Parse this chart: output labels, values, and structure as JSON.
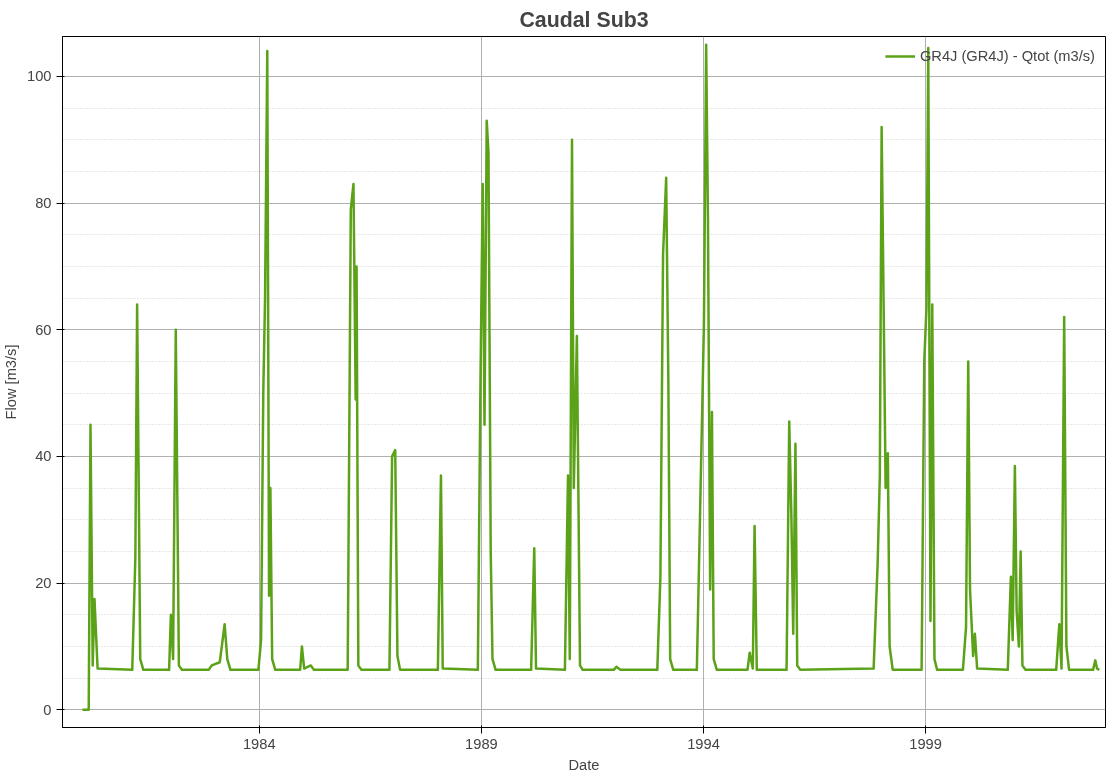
{
  "chart_data": {
    "type": "line",
    "title": "Caudal Sub3",
    "xlabel": "Date",
    "ylabel": "Flow [m3/s]",
    "xlim": [
      1979.57,
      2003.05
    ],
    "ylim": [
      -2.8,
      106.3
    ],
    "xticks": [
      1984,
      1989,
      1994,
      1999
    ],
    "yticks": [
      0,
      20,
      40,
      60,
      80,
      100
    ],
    "grid": true,
    "legend": "top right",
    "marker": "none",
    "line_style": "solid",
    "series": [
      {
        "name": "GR4J (GR4J) - Qtot (m3/s)",
        "color": "#5ba219",
        "x": [
          1980.02,
          1980.16,
          1980.2,
          1980.25,
          1980.29,
          1980.36,
          1981.14,
          1981.21,
          1981.25,
          1981.32,
          1981.39,
          1981.97,
          1982.01,
          1982.06,
          1982.12,
          1982.19,
          1982.26,
          1982.86,
          1982.93,
          1983.11,
          1983.22,
          1983.28,
          1983.35,
          1983.98,
          1984.04,
          1984.09,
          1984.13,
          1984.18,
          1984.22,
          1984.25,
          1984.29,
          1984.36,
          1984.92,
          1984.96,
          1985.01,
          1985.16,
          1985.23,
          1985.99,
          1986.06,
          1986.12,
          1986.17,
          1986.19,
          1986.23,
          1986.3,
          1986.93,
          1986.99,
          1987.06,
          1987.11,
          1987.17,
          1988.02,
          1988.09,
          1988.13,
          1988.92,
          1988.98,
          1989.03,
          1989.07,
          1989.12,
          1989.16,
          1989.21,
          1989.25,
          1989.32,
          1990.12,
          1990.19,
          1990.23,
          1990.88,
          1990.95,
          1990.99,
          1991.04,
          1991.08,
          1991.15,
          1991.22,
          1991.28,
          1991.98,
          1992.04,
          1992.13,
          1992.96,
          1993.03,
          1993.09,
          1993.16,
          1993.21,
          1993.25,
          1993.32,
          1993.85,
          1993.92,
          1993.97,
          1994.01,
          1994.06,
          1994.1,
          1994.15,
          1994.19,
          1994.23,
          1994.3,
          1994.99,
          1995.04,
          1995.11,
          1995.15,
          1995.2,
          1995.87,
          1995.93,
          1995.98,
          1996.02,
          1996.07,
          1996.11,
          1996.18,
          1997.83,
          1997.92,
          1997.97,
          1998.01,
          1998.06,
          1998.1,
          1998.15,
          1998.19,
          1998.26,
          1998.91,
          1998.97,
          1999.02,
          1999.06,
          1999.11,
          1999.15,
          1999.2,
          1999.26,
          1999.84,
          1999.91,
          1999.96,
          2000.0,
          2000.07,
          2000.11,
          2000.16,
          2000.85,
          2000.92,
          2000.96,
          2001.01,
          2001.05,
          2001.1,
          2001.14,
          2001.18,
          2001.25,
          2001.94,
          2002.01,
          2002.06,
          2002.12,
          2002.17,
          2002.23,
          2002.77,
          2002.82,
          2002.86,
          2002.91
        ],
        "values": [
          0,
          0,
          45,
          7,
          17.5,
          6.5,
          6.3,
          24,
          64,
          8,
          6.3,
          6.3,
          15,
          8,
          60,
          7,
          6.3,
          6.3,
          7,
          7.5,
          13.5,
          8,
          6.3,
          6.3,
          11,
          50,
          65,
          104,
          18,
          35,
          8,
          6.3,
          6.3,
          10,
          6.5,
          7,
          6.3,
          6.3,
          79,
          83,
          49,
          70,
          7,
          6.3,
          6.3,
          40,
          41,
          8.5,
          6.3,
          6.3,
          37,
          6.5,
          6.3,
          52,
          83,
          45,
          93,
          88,
          25,
          8,
          6.3,
          6.3,
          25.5,
          6.5,
          6.3,
          37,
          8,
          90,
          35,
          59,
          7,
          6.3,
          6.3,
          6.8,
          6.3,
          6.3,
          21,
          72,
          84,
          51,
          8,
          6.3,
          6.3,
          30,
          47,
          61,
          105,
          78,
          19,
          47,
          8,
          6.3,
          6.3,
          9,
          6.5,
          29,
          6.3,
          6.3,
          45.5,
          30,
          12,
          42,
          7,
          6.3,
          6.5,
          23,
          37,
          92,
          61,
          35,
          40.5,
          10,
          6.3,
          6.3,
          55,
          63.5,
          104.5,
          14,
          64,
          8,
          6.3,
          6.3,
          13,
          55,
          19,
          8.5,
          12,
          6.5,
          6.3,
          21,
          11,
          38.5,
          15.5,
          10,
          25,
          7,
          6.3,
          6.3,
          13.5,
          6.5,
          62,
          10,
          6.3,
          6.3,
          7.8,
          6.5,
          6.3
        ]
      }
    ]
  }
}
